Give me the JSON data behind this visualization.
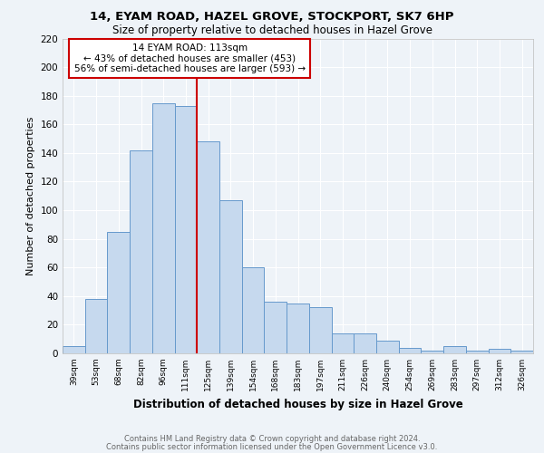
{
  "title": "14, EYAM ROAD, HAZEL GROVE, STOCKPORT, SK7 6HP",
  "subtitle": "Size of property relative to detached houses in Hazel Grove",
  "xlabel": "Distribution of detached houses by size in Hazel Grove",
  "ylabel": "Number of detached properties",
  "categories": [
    "39sqm",
    "53sqm",
    "68sqm",
    "82sqm",
    "96sqm",
    "111sqm",
    "125sqm",
    "139sqm",
    "154sqm",
    "168sqm",
    "183sqm",
    "197sqm",
    "211sqm",
    "226sqm",
    "240sqm",
    "254sqm",
    "269sqm",
    "283sqm",
    "297sqm",
    "312sqm",
    "326sqm"
  ],
  "values": [
    5,
    38,
    85,
    142,
    175,
    173,
    148,
    107,
    60,
    36,
    35,
    32,
    14,
    14,
    9,
    4,
    2,
    5,
    2,
    3,
    2
  ],
  "bar_color": "#c6d9ee",
  "bar_edgecolor": "#6699cc",
  "highlight_index": 5,
  "highlight_color": "#cc0000",
  "ylim": [
    0,
    220
  ],
  "yticks": [
    0,
    20,
    40,
    60,
    80,
    100,
    120,
    140,
    160,
    180,
    200,
    220
  ],
  "annotation_title": "14 EYAM ROAD: 113sqm",
  "annotation_line1": "← 43% of detached houses are smaller (453)",
  "annotation_line2": "56% of semi-detached houses are larger (593) →",
  "annotation_box_color": "#ffffff",
  "annotation_box_edgecolor": "#cc0000",
  "background_color": "#eef3f8",
  "grid_color": "#ffffff",
  "footer1": "Contains HM Land Registry data © Crown copyright and database right 2024.",
  "footer2": "Contains public sector information licensed under the Open Government Licence v3.0."
}
